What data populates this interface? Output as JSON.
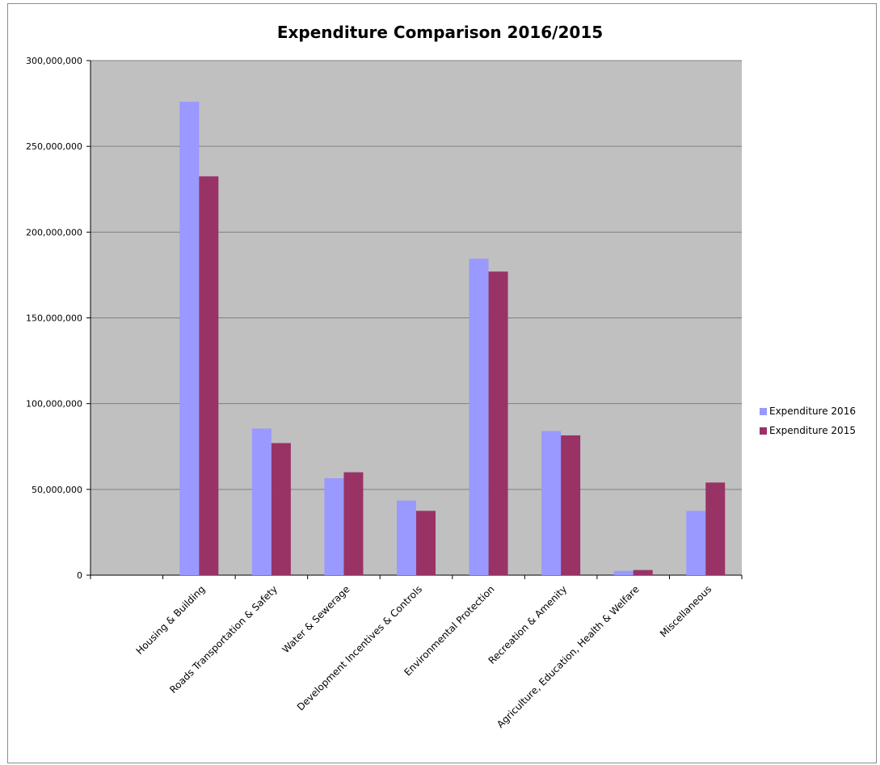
{
  "chart_data": {
    "type": "bar",
    "title": "Expenditure Comparison 2016/2015",
    "xlabel": "",
    "ylabel": "",
    "ylim": [
      0,
      300000000
    ],
    "yticks": [
      0,
      50000000,
      100000000,
      150000000,
      200000000,
      250000000,
      300000000
    ],
    "ytick_labels": [
      "0",
      "50,000,000",
      "100,000,000",
      "150,000,000",
      "200,000,000",
      "250,000,000",
      "300,000,000"
    ],
    "grid": true,
    "legend_position": "right",
    "categories": [
      "",
      "Housing & Building",
      "Roads Transportation & Safety",
      "Water & Sewerage",
      "Development Incentives & Controls",
      "Environmental Protection",
      "Recreation & Amenity",
      "Agriculture, Education, Health & Welfare",
      "Miscellaneous"
    ],
    "series": [
      {
        "name": "Expenditure 2016",
        "color": "#9999ff",
        "values": [
          null,
          276000000,
          85500000,
          56500000,
          43500000,
          184500000,
          84000000,
          2500000,
          37500000
        ]
      },
      {
        "name": "Expenditure 2015",
        "color": "#993366",
        "values": [
          null,
          232500000,
          77000000,
          60000000,
          37500000,
          177000000,
          81500000,
          3000000,
          54000000
        ]
      }
    ],
    "plot_background": "#c0c0c0",
    "gridline_color": "#808080"
  }
}
